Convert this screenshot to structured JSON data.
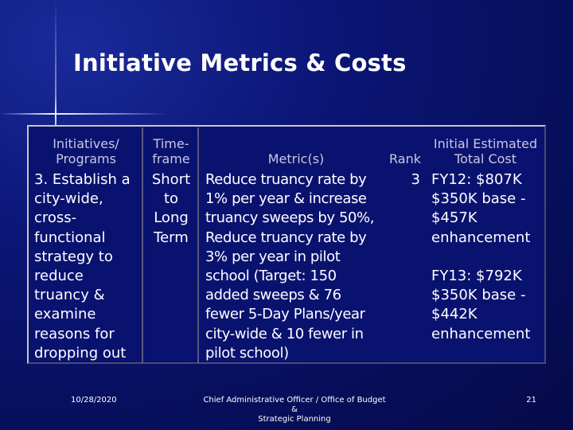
{
  "slide": {
    "title": "Initiative Metrics & Costs"
  },
  "table": {
    "headers": {
      "initiatives_line1": "Initiatives/",
      "initiatives_line2": "Programs",
      "timeframe_line1": "Time-",
      "timeframe_line2": "frame",
      "metrics": "Metric(s)",
      "rank": "Rank",
      "cost_line1": "Initial Estimated",
      "cost_line2": "Total Cost"
    },
    "row": {
      "initiative_lines": [
        "3. Establish a",
        "city-wide,",
        "cross-",
        "functional",
        "strategy to",
        "reduce",
        "truancy &",
        "examine",
        "reasons for",
        "dropping out"
      ],
      "timeframe_lines": [
        "Short",
        "to",
        "Long",
        "Term"
      ],
      "metric_lines": [
        "Reduce truancy rate by",
        "1% per year & increase",
        "truancy sweeps by 50%,",
        "Reduce truancy rate by",
        "3% per year in pilot",
        "school (Target: 150",
        "added sweeps & 76",
        "fewer 5-Day Plans/year",
        "city-wide & 10 fewer in",
        "pilot school)"
      ],
      "rank": "3",
      "cost_lines": [
        "FY12: $807K",
        "$350K base -",
        "$457K",
        "enhancement",
        "",
        "FY13: $792K",
        "$350K base -",
        "$442K",
        "enhancement"
      ]
    }
  },
  "footer": {
    "date": "10/28/2020",
    "office_line1": "Chief Administrative Officer / Office of Budget &",
    "office_line2": "Strategic Planning",
    "page_number": "21"
  }
}
